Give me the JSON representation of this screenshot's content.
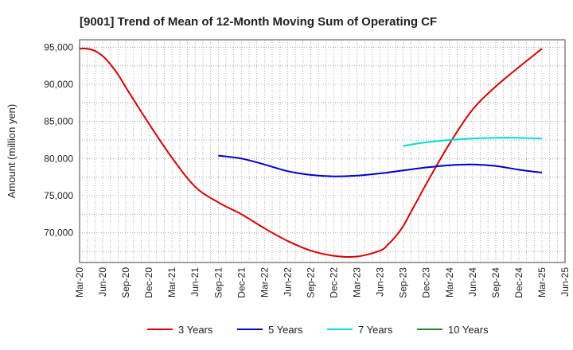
{
  "chart_data": {
    "type": "line",
    "title": "[9001]  Trend of Mean of 12-Month Moving Sum of Operating CF",
    "xlabel": "",
    "ylabel": "Amount (million yen)",
    "ylim": [
      66000,
      96000
    ],
    "y_ticks": [
      70000,
      75000,
      80000,
      85000,
      90000,
      95000
    ],
    "y_tick_labels": [
      "70,000",
      "75,000",
      "80,000",
      "85,000",
      "90,000",
      "95,000"
    ],
    "x_tick_labels": [
      "Mar-20",
      "Jun-20",
      "Sep-20",
      "Dec-20",
      "Mar-21",
      "Jun-21",
      "Sep-21",
      "Dec-21",
      "Mar-22",
      "Jun-22",
      "Sep-22",
      "Dec-22",
      "Mar-23",
      "Jun-23",
      "Sep-23",
      "Dec-23",
      "Mar-24",
      "Jun-24",
      "Sep-24",
      "Dec-24",
      "Mar-25",
      "Jun-25"
    ],
    "x_unit": "months since Mar-20",
    "grid": true,
    "legend_position": "bottom",
    "series": [
      {
        "name": "3 Years",
        "color": "#dd0000",
        "x": [
          0,
          1,
          2,
          3,
          4,
          5,
          6,
          9,
          12,
          15,
          18,
          21,
          24,
          27,
          30,
          33,
          36,
          39,
          40,
          41,
          42,
          43,
          44,
          45,
          48,
          51,
          54,
          57,
          60
        ],
        "y": [
          94800,
          94800,
          94500,
          93800,
          92700,
          91300,
          89600,
          84700,
          80100,
          76200,
          74100,
          72500,
          70600,
          68900,
          67600,
          66900,
          66800,
          67600,
          68400,
          69500,
          70900,
          72800,
          74700,
          76600,
          82000,
          86600,
          89700,
          92300,
          94800
        ]
      },
      {
        "name": "5 Years",
        "color": "#0000cc",
        "x": [
          18,
          21,
          24,
          27,
          30,
          33,
          36,
          39,
          42,
          45,
          48,
          51,
          54,
          57,
          60
        ],
        "y": [
          80400,
          80000,
          79200,
          78300,
          77800,
          77600,
          77700,
          78000,
          78400,
          78800,
          79100,
          79200,
          79000,
          78500,
          78100
        ]
      },
      {
        "name": "7 Years",
        "color": "#00dddd",
        "x": [
          42,
          45,
          48,
          51,
          54,
          57,
          60
        ],
        "y": [
          81700,
          82200,
          82500,
          82700,
          82800,
          82800,
          82700
        ]
      },
      {
        "name": "10 Years",
        "color": "#228822",
        "x": [],
        "y": []
      }
    ]
  }
}
